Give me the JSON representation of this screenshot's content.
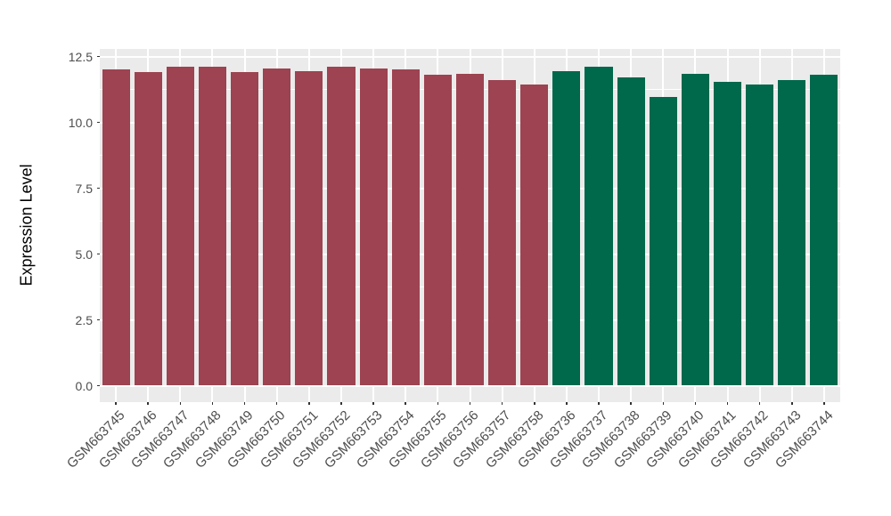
{
  "chart_data": {
    "type": "bar",
    "title": "",
    "xlabel": "",
    "ylabel": "Expression Level",
    "ylim": [
      0,
      12.5
    ],
    "y_ticks": [
      "0.0",
      "2.5",
      "5.0",
      "7.5",
      "10.0",
      "12.5"
    ],
    "grid": "on",
    "legend_position": "none",
    "panel_background": "#EBEBEB",
    "grid_color": "#FFFFFF",
    "axis_text_color": "#4D4D4D",
    "group_colors": {
      "maroon": "#9D4351",
      "green": "#00684B"
    },
    "categories": [
      "GSM663745",
      "GSM663746",
      "GSM663747",
      "GSM663748",
      "GSM663749",
      "GSM663750",
      "GSM663751",
      "GSM663752",
      "GSM663753",
      "GSM663754",
      "GSM663755",
      "GSM663756",
      "GSM663757",
      "GSM663758",
      "GSM663736",
      "GSM663737",
      "GSM663738",
      "GSM663739",
      "GSM663740",
      "GSM663741",
      "GSM663742",
      "GSM663743",
      "GSM663744"
    ],
    "bars": [
      {
        "label": "GSM663745",
        "value": 12.0,
        "group": "maroon"
      },
      {
        "label": "GSM663746",
        "value": 11.9,
        "group": "maroon"
      },
      {
        "label": "GSM663747",
        "value": 12.1,
        "group": "maroon"
      },
      {
        "label": "GSM663748",
        "value": 12.1,
        "group": "maroon"
      },
      {
        "label": "GSM663749",
        "value": 11.9,
        "group": "maroon"
      },
      {
        "label": "GSM663750",
        "value": 12.05,
        "group": "maroon"
      },
      {
        "label": "GSM663751",
        "value": 11.95,
        "group": "maroon"
      },
      {
        "label": "GSM663752",
        "value": 12.1,
        "group": "maroon"
      },
      {
        "label": "GSM663753",
        "value": 12.05,
        "group": "maroon"
      },
      {
        "label": "GSM663754",
        "value": 12.0,
        "group": "maroon"
      },
      {
        "label": "GSM663755",
        "value": 11.8,
        "group": "maroon"
      },
      {
        "label": "GSM663756",
        "value": 11.85,
        "group": "maroon"
      },
      {
        "label": "GSM663757",
        "value": 11.6,
        "group": "maroon"
      },
      {
        "label": "GSM663758",
        "value": 11.45,
        "group": "maroon"
      },
      {
        "label": "GSM663736",
        "value": 11.95,
        "group": "green"
      },
      {
        "label": "GSM663737",
        "value": 12.1,
        "group": "green"
      },
      {
        "label": "GSM663738",
        "value": 11.7,
        "group": "green"
      },
      {
        "label": "GSM663739",
        "value": 10.95,
        "group": "green"
      },
      {
        "label": "GSM663740",
        "value": 11.85,
        "group": "green"
      },
      {
        "label": "GSM663741",
        "value": 11.55,
        "group": "green"
      },
      {
        "label": "GSM663742",
        "value": 11.45,
        "group": "green"
      },
      {
        "label": "GSM663743",
        "value": 11.6,
        "group": "green"
      },
      {
        "label": "GSM663744",
        "value": 11.8,
        "group": "green"
      }
    ]
  }
}
